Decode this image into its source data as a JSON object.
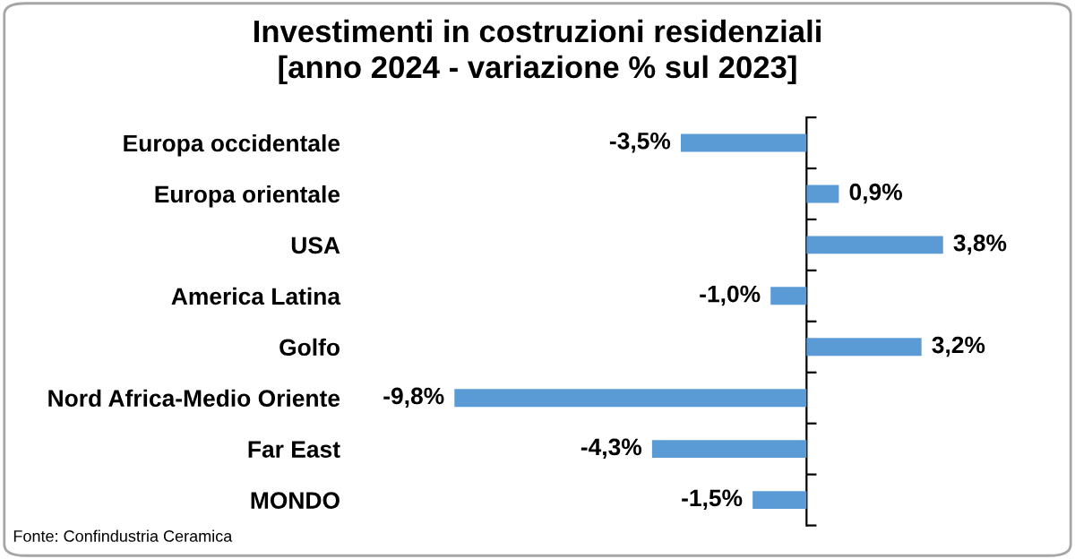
{
  "chart_data": {
    "type": "bar",
    "orientation": "horizontal",
    "title": "Investimenti in costruzioni residenziali\n[anno 2024 - variazione % sul 2023]",
    "categories": [
      "Europa occidentale",
      "Europa orientale",
      "USA",
      "America Latina",
      "Golfo",
      "Nord Africa-Medio Oriente",
      "Far East",
      "MONDO"
    ],
    "values": [
      -3.5,
      0.9,
      3.8,
      -1.0,
      3.2,
      -9.8,
      -4.3,
      -1.5
    ],
    "value_labels": [
      "-3,5%",
      "0,9%",
      "3,8%",
      "-1,0%",
      "3,2%",
      "-9,8%",
      "-4,3%",
      "-1,5%"
    ],
    "color": "#5b9bd5",
    "grid": false,
    "legend": false,
    "annotations": [
      "Fonte: Confindustria Ceramica"
    ]
  }
}
